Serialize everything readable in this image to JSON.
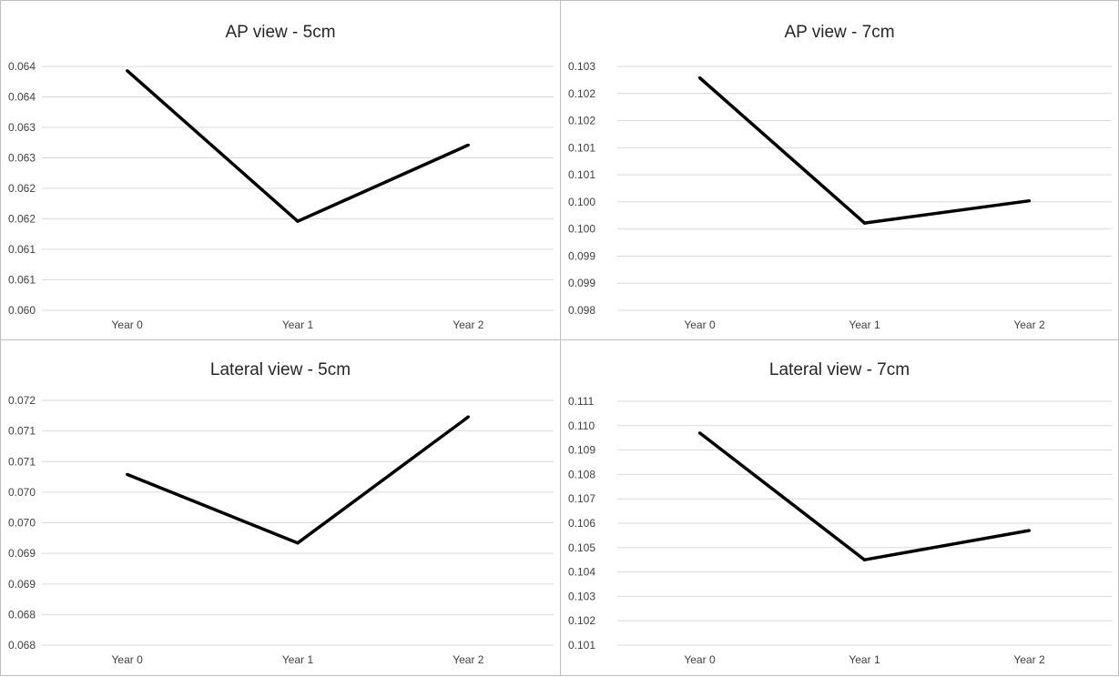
{
  "colors": {
    "line": "#000000",
    "grid": "#d9d9d9",
    "text": "#404040",
    "border": "#bfbfbf"
  },
  "chart_data": [
    {
      "type": "line",
      "title": "AP view - 5cm",
      "categories": [
        "Year 0",
        "Year 1",
        "Year 2"
      ],
      "ytick_labels": [
        "0.064",
        "0.064",
        "0.063",
        "0.063",
        "0.062",
        "0.062",
        "0.061",
        "0.061",
        "0.060"
      ],
      "ylim": [
        0.06,
        0.064
      ],
      "series": [
        {
          "values": [
            0.06393,
            0.06146,
            0.06271
          ]
        }
      ],
      "grid": true
    },
    {
      "type": "line",
      "title": "AP view - 7cm",
      "categories": [
        "Year 0",
        "Year 1",
        "Year 2"
      ],
      "ytick_labels": [
        "0.103",
        "0.102",
        "0.102",
        "0.101",
        "0.101",
        "0.100",
        "0.100",
        "0.099",
        "0.099",
        "0.098"
      ],
      "ylim": [
        0.098,
        0.1025
      ],
      "series": [
        {
          "values": [
            0.10229,
            0.09961,
            0.10002
          ]
        }
      ],
      "grid": true
    },
    {
      "type": "line",
      "title": "Lateral view - 5cm",
      "categories": [
        "Year 0",
        "Year 1",
        "Year 2"
      ],
      "ytick_labels": [
        "0.072",
        "0.071",
        "0.071",
        "0.070",
        "0.070",
        "0.069",
        "0.069",
        "0.068",
        "0.068"
      ],
      "ylim": [
        0.0676,
        0.0716
      ],
      "series": [
        {
          "values": [
            0.07039,
            0.06927,
            0.07133
          ]
        }
      ],
      "grid": true
    },
    {
      "type": "line",
      "title": "Lateral view - 7cm",
      "categories": [
        "Year 0",
        "Year 1",
        "Year 2"
      ],
      "ytick_labels": [
        "0.111",
        "0.110",
        "0.109",
        "0.108",
        "0.107",
        "0.106",
        "0.105",
        "0.104",
        "0.103",
        "0.102",
        "0.101"
      ],
      "ylim": [
        0.101,
        0.111
      ],
      "series": [
        {
          "values": [
            0.1097,
            0.1045,
            0.1057
          ]
        }
      ],
      "grid": true
    }
  ]
}
